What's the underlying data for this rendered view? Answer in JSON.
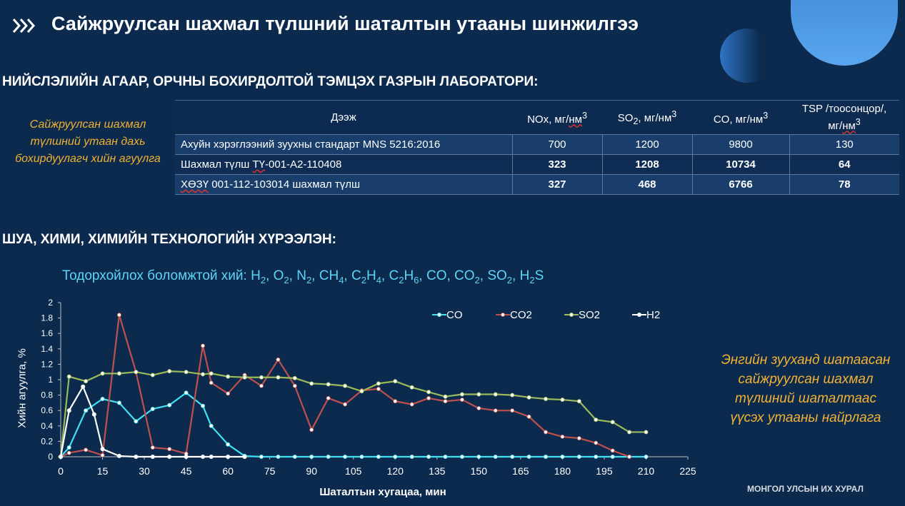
{
  "header": {
    "title": "Сайжруулсан шахмал түлшний шаталтын утааны шинжилгээ",
    "footer": "МОНГОЛ УЛСЫН ИХ ХУРАЛ"
  },
  "lab_section": {
    "heading": "НИЙСЛЭЛИЙН АГААР, ОРЧНЫ БОХИРДОЛТОЙ ТЭМЦЭХ ГАЗРЫН ЛАБОРАТОРИ:",
    "side_note": "Сайжруулсан шахмал түлшний утаан дахь бохирдуулагч хийн агуулга",
    "table": {
      "headers": {
        "sample": "Дээж",
        "nox_a": "NOx, мг/",
        "nox_b": "нм",
        "nox_sup": "3",
        "so2_a": "SO",
        "so2_sub": "2",
        "so2_b": ", мг/нм",
        "so2_sup": "3",
        "co_a": "CO, мг/нм",
        "co_sup": "3",
        "tsp_a": "TSP /тоосонцор/,",
        "tsp_b": "мг/",
        "tsp_c": "нм",
        "tsp_sup": "3"
      },
      "rows": [
        {
          "name": "Ахуйн хэрэглээний зуухны стандарт MNS 5216:2016",
          "nox": "700",
          "so2": "1200",
          "co": "9800",
          "tsp": "130"
        },
        {
          "name_a": "Шахмал түлш ",
          "name_b": "ТҮ",
          "name_c": "-001-А2-110408",
          "nox": "323",
          "so2": "1208",
          "co": "10734",
          "tsp": "64"
        },
        {
          "name_a": "ХӨЗҮ",
          "name_b": " 001-112-103014 шахмал түлш",
          "nox": "327",
          "so2": "468",
          "co": "6766",
          "tsp": "78"
        }
      ]
    }
  },
  "inst_section": {
    "heading": "ШУА, ХИМИ, ХИМИЙН ТЕХНОЛОГИЙН ХҮРЭЭЛЭН:",
    "gases": {
      "prefix": "Тодорхойлох боломжтой хий: ",
      "h2": "H",
      "h2_sub": "2",
      "o2": "O",
      "o2_sub": "2",
      "n2": "N",
      "n2_sub": "2",
      "ch4": "CH",
      "ch4_sub": "4",
      "c2h4_a": "C",
      "c2h4_s1": "2",
      "c2h4_b": "H",
      "c2h4_s2": "4",
      "c2h6_a": "C",
      "c2h6_s1": "2",
      "c2h6_b": "H",
      "c2h6_s2": "6",
      "co": "CO",
      "co2": "CO",
      "co2_sub": "2",
      "so2": "SO",
      "so2_sub": "2",
      "h2s_a": "H",
      "h2s_sub": "2",
      "h2s_b": "S",
      "sep": ", "
    },
    "right_note": "Энгийн зууханд шатаасан сайжруулсан шахмал түлшний шаталтаас үүсэх утааны найрлага"
  },
  "chart_data": {
    "type": "line",
    "xlabel": "Шаталтын хугацаа, мин",
    "ylabel": "Хийн агуулга, %",
    "xlim": [
      0,
      225
    ],
    "ylim": [
      0,
      2
    ],
    "xticks": [
      0,
      15,
      30,
      45,
      60,
      75,
      90,
      105,
      120,
      135,
      150,
      165,
      180,
      195,
      210,
      225
    ],
    "yticks": [
      0,
      0.2,
      0.4,
      0.6,
      0.8,
      1,
      1.2,
      1.4,
      1.6,
      1.8,
      2
    ],
    "grid": false,
    "legend": "top-right",
    "series": [
      {
        "name": "CO",
        "color": "#3fe3f3",
        "points": [
          [
            0,
            0
          ],
          [
            3,
            0.12
          ],
          [
            9,
            0.6
          ],
          [
            15,
            0.75
          ],
          [
            21,
            0.7
          ],
          [
            27,
            0.46
          ],
          [
            33,
            0.62
          ],
          [
            39,
            0.67
          ],
          [
            45,
            0.83
          ],
          [
            51,
            0.66
          ],
          [
            54,
            0.4
          ],
          [
            60,
            0.16
          ],
          [
            66,
            0.01
          ],
          [
            72,
            0
          ],
          [
            78,
            0
          ],
          [
            84,
            0
          ],
          [
            90,
            0
          ],
          [
            96,
            0
          ],
          [
            102,
            0
          ],
          [
            108,
            0
          ],
          [
            114,
            0
          ],
          [
            120,
            0
          ],
          [
            126,
            0
          ],
          [
            132,
            0
          ],
          [
            138,
            0
          ],
          [
            144,
            0
          ],
          [
            150,
            0
          ],
          [
            156,
            0
          ],
          [
            162,
            0
          ],
          [
            168,
            0
          ],
          [
            174,
            0
          ],
          [
            180,
            0
          ],
          [
            186,
            0
          ],
          [
            192,
            0
          ],
          [
            198,
            0
          ],
          [
            204,
            0
          ],
          [
            210,
            0
          ]
        ]
      },
      {
        "name": "CO2",
        "color": "#c0504d",
        "points": [
          [
            0,
            0
          ],
          [
            3,
            0.05
          ],
          [
            9,
            0.09
          ],
          [
            15,
            0.02
          ],
          [
            21,
            1.84
          ],
          [
            27,
            1.1
          ],
          [
            33,
            0.12
          ],
          [
            39,
            0.1
          ],
          [
            45,
            0.04
          ],
          [
            51,
            1.44
          ],
          [
            54,
            0.96
          ],
          [
            60,
            0.82
          ],
          [
            66,
            1.06
          ],
          [
            72,
            0.92
          ],
          [
            78,
            1.26
          ],
          [
            84,
            0.92
          ],
          [
            90,
            0.35
          ],
          [
            96,
            0.76
          ],
          [
            102,
            0.68
          ],
          [
            108,
            0.86
          ],
          [
            114,
            0.88
          ],
          [
            120,
            0.72
          ],
          [
            126,
            0.68
          ],
          [
            132,
            0.76
          ],
          [
            138,
            0.72
          ],
          [
            144,
            0.74
          ],
          [
            150,
            0.63
          ],
          [
            156,
            0.6
          ],
          [
            162,
            0.6
          ],
          [
            168,
            0.52
          ],
          [
            174,
            0.32
          ],
          [
            180,
            0.26
          ],
          [
            186,
            0.24
          ],
          [
            192,
            0.18
          ],
          [
            198,
            0.08
          ],
          [
            204,
            0
          ]
        ]
      },
      {
        "name": "SO2",
        "color": "#9bbb59",
        "points": [
          [
            0,
            0
          ],
          [
            3,
            1.04
          ],
          [
            9,
            0.98
          ],
          [
            15,
            1.08
          ],
          [
            21,
            1.08
          ],
          [
            27,
            1.1
          ],
          [
            33,
            1.06
          ],
          [
            39,
            1.11
          ],
          [
            45,
            1.1
          ],
          [
            51,
            1.07
          ],
          [
            54,
            1.08
          ],
          [
            60,
            1.04
          ],
          [
            66,
            1.03
          ],
          [
            72,
            1.03
          ],
          [
            78,
            1.03
          ],
          [
            84,
            1.02
          ],
          [
            90,
            0.95
          ],
          [
            96,
            0.94
          ],
          [
            102,
            0.92
          ],
          [
            108,
            0.85
          ],
          [
            114,
            0.95
          ],
          [
            120,
            0.98
          ],
          [
            126,
            0.9
          ],
          [
            132,
            0.84
          ],
          [
            138,
            0.78
          ],
          [
            144,
            0.81
          ],
          [
            150,
            0.81
          ],
          [
            156,
            0.81
          ],
          [
            162,
            0.8
          ],
          [
            168,
            0.77
          ],
          [
            174,
            0.75
          ],
          [
            180,
            0.74
          ],
          [
            186,
            0.72
          ],
          [
            192,
            0.48
          ],
          [
            198,
            0.45
          ],
          [
            204,
            0.32
          ],
          [
            210,
            0.32
          ]
        ]
      },
      {
        "name": "H2",
        "color": "#ffffff",
        "points": [
          [
            0,
            0
          ],
          [
            3,
            0.6
          ],
          [
            8,
            0.91
          ],
          [
            12,
            0.55
          ],
          [
            15,
            0.1
          ],
          [
            21,
            0.01
          ],
          [
            27,
            0
          ],
          [
            33,
            0
          ],
          [
            39,
            0
          ],
          [
            45,
            0
          ],
          [
            51,
            0
          ],
          [
            54,
            0
          ],
          [
            60,
            0
          ],
          [
            66,
            0
          ]
        ]
      }
    ]
  }
}
